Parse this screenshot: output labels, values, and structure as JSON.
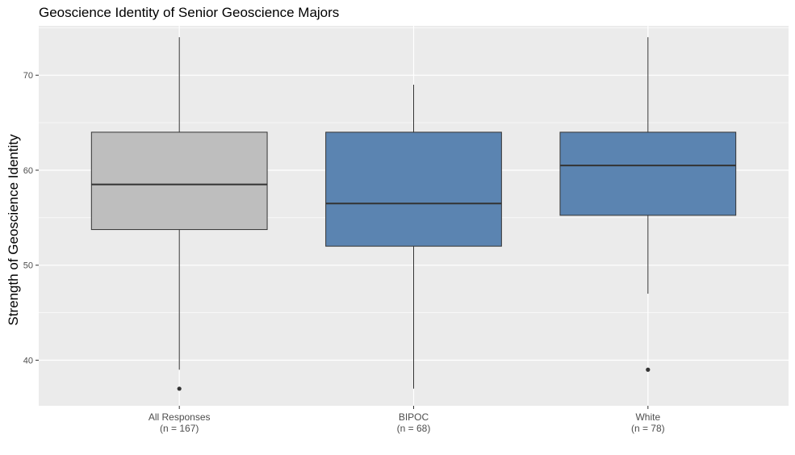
{
  "chart_data": {
    "type": "box",
    "title": "Geoscience Identity of Senior Geoscience Majors",
    "xlabel": "",
    "ylabel": "Strength of Geoscience Identity",
    "ylim": [
      35.2,
      75.2
    ],
    "yticks": [
      40,
      50,
      60,
      70
    ],
    "grid": true,
    "categories": [
      {
        "label": "All Responses",
        "sublabel": "(n = 167)"
      },
      {
        "label": "BIPOC",
        "sublabel": "(n = 68)"
      },
      {
        "label": "White",
        "sublabel": "(n = 78)"
      }
    ],
    "boxes": [
      {
        "name": "All Responses",
        "whisker_low": 39,
        "q1": 53.75,
        "median": 58.5,
        "q3": 64,
        "whisker_high": 74,
        "outliers": [
          37
        ],
        "fill": "#bebebe"
      },
      {
        "name": "BIPOC",
        "whisker_low": 37,
        "q1": 52,
        "median": 56.5,
        "q3": 64,
        "whisker_high": 69,
        "outliers": [],
        "fill": "#5b84b1"
      },
      {
        "name": "White",
        "whisker_low": 47,
        "q1": 55.25,
        "median": 60.5,
        "q3": 64,
        "whisker_high": 74,
        "outliers": [
          39
        ],
        "fill": "#5b84b1"
      }
    ],
    "colors": {
      "panel": "#ebebeb",
      "grid": "#ffffff",
      "outline": "#333333"
    }
  }
}
